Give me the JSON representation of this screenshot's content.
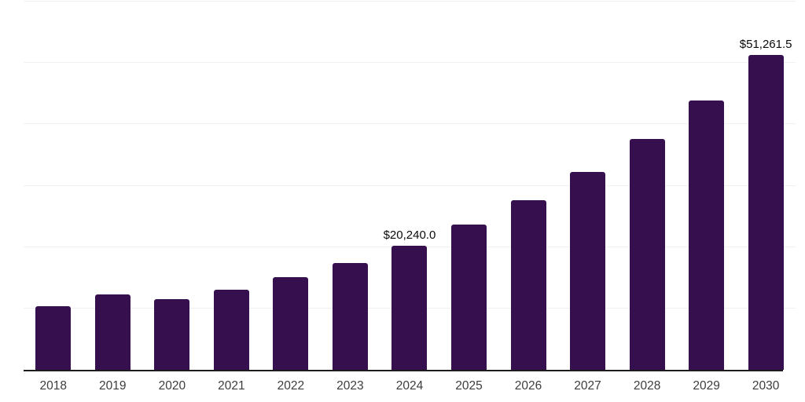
{
  "chart_data": {
    "type": "bar",
    "title": "",
    "xlabel": "",
    "ylabel": "",
    "categories": [
      "2018",
      "2019",
      "2020",
      "2021",
      "2022",
      "2023",
      "2024",
      "2025",
      "2026",
      "2027",
      "2028",
      "2029",
      "2030"
    ],
    "values": [
      10400,
      12280,
      11510,
      13050,
      15100,
      17440,
      20240.0,
      23630,
      27590,
      32210,
      37600,
      43900,
      51261.5
    ],
    "data_labels": [
      "",
      "",
      "",
      "",
      "",
      "",
      "$20,240.0",
      "",
      "",
      "",
      "",
      "",
      "$51,261.5"
    ],
    "ylim": [
      0,
      60000
    ],
    "gridline_values": [
      10000,
      20000,
      30000,
      40000,
      50000,
      60000
    ],
    "grid": true,
    "legend": false,
    "yaxis_labels_visible": false
  },
  "colors": {
    "bar": "#36104E",
    "gridline": "#f0f0f0",
    "axis": "#1c1c1c",
    "tick_label": "#3d3d3d",
    "data_label": "#0a0a0a",
    "background": "#ffffff"
  }
}
